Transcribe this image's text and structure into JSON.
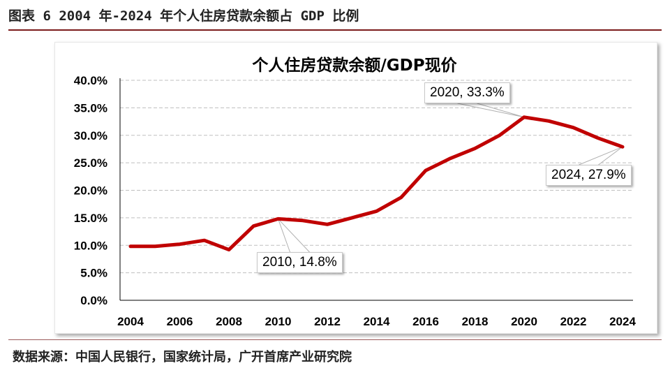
{
  "caption": "图表 6 2004 年-2024 年个人住房贷款余额占 GDP 比例",
  "source": "数据来源：中国人民银行，国家统计局，广开首席产业研究院",
  "colors": {
    "line": "#c00000",
    "caption_rule": "#7b1b1b",
    "grid": "#bfbfbf"
  },
  "chart_data": {
    "type": "line",
    "title": "个人住房贷款余额/GDP现价",
    "xlabel": "",
    "ylabel": "",
    "x": [
      2004,
      2005,
      2006,
      2007,
      2008,
      2009,
      2010,
      2011,
      2012,
      2013,
      2014,
      2015,
      2016,
      2017,
      2018,
      2019,
      2020,
      2021,
      2022,
      2023,
      2024
    ],
    "x_tick_labels": [
      "2004",
      "2006",
      "2008",
      "2010",
      "2012",
      "2014",
      "2016",
      "2018",
      "2020",
      "2022",
      "2024"
    ],
    "y_tick_labels": [
      "0.0%",
      "5.0%",
      "10.0%",
      "15.0%",
      "20.0%",
      "25.0%",
      "30.0%",
      "35.0%",
      "40.0%"
    ],
    "ylim": [
      0,
      40
    ],
    "grid": true,
    "series": [
      {
        "values": [
          9.8,
          9.8,
          10.2,
          10.9,
          9.2,
          13.5,
          14.8,
          14.5,
          13.8,
          15.0,
          16.2,
          18.7,
          23.6,
          25.8,
          27.6,
          30.0,
          33.3,
          32.6,
          31.4,
          29.5,
          27.9
        ]
      }
    ],
    "annotations": [
      {
        "x": 2010,
        "y": 14.8,
        "text": "2010, 14.8%"
      },
      {
        "x": 2020,
        "y": 33.3,
        "text": "2020, 33.3%"
      },
      {
        "x": 2024,
        "y": 27.9,
        "text": "2024, 27.9%"
      }
    ]
  }
}
